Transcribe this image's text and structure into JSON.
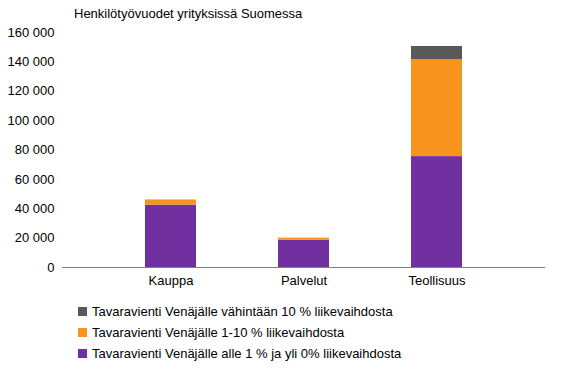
{
  "chart_data": {
    "type": "bar",
    "title": "Henkilötyövuodet yrityksissä Suomessa",
    "stacked": true,
    "grid": false,
    "legend": "bottom",
    "categories": [
      "Kauppa",
      "Palvelut",
      "Teollisuus"
    ],
    "series": [
      {
        "name": "Tavaravienti Venäjälle vähintään 10 % liikevaihdosta",
        "color": "#595959",
        "values": [
          0,
          0,
          9000
        ]
      },
      {
        "name": "Tavaravienti Venäjälle 1-10 % liikevaihdosta",
        "color": "#f7941d",
        "values": [
          3500,
          1500,
          66000
        ]
      },
      {
        "name": "Tavaravienti Venäjälle alle 1 % ja yli 0% liikevaihdosta",
        "color": "#7030a0",
        "values": [
          42500,
          18500,
          75500
        ]
      }
    ],
    "ylim": [
      0,
      160000
    ],
    "yticks": [
      0,
      {
        "value": 20000,
        "label": "20 000"
      },
      {
        "value": 40000,
        "label": "40 000"
      },
      {
        "value": 60000,
        "label": "60 000"
      },
      {
        "value": 80000,
        "label": "80 000"
      },
      {
        "value": 100000,
        "label": "100 000"
      },
      {
        "value": 120000,
        "label": "120 000"
      },
      {
        "value": 140000,
        "label": "140 000"
      },
      {
        "value": 160000,
        "label": "160 000"
      }
    ]
  }
}
